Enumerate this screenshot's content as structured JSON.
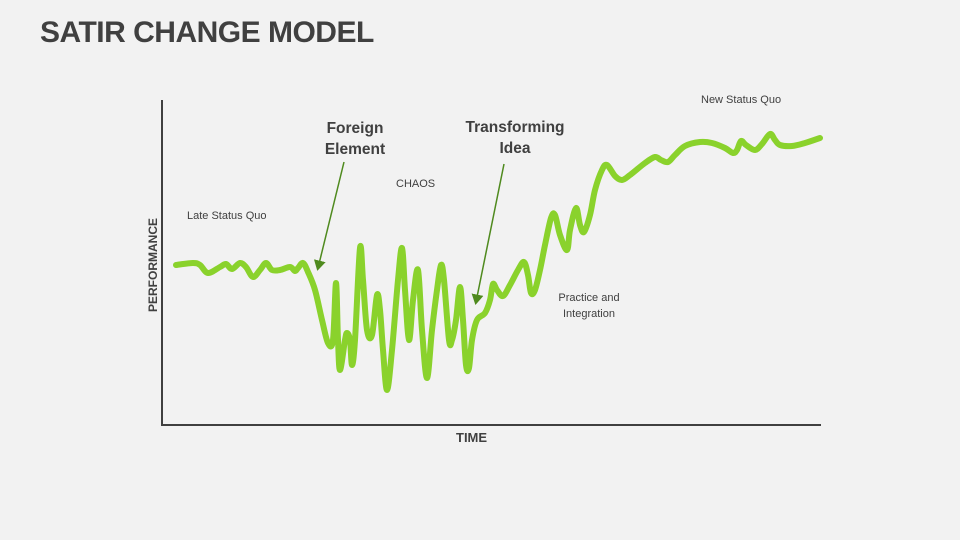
{
  "title": "SATIR CHANGE MODEL",
  "axes": {
    "x_label": "TIME",
    "y_label": "PERFORMANCE"
  },
  "annotations": {
    "late_status_quo": "Late Status Quo",
    "foreign_element": [
      "Foreign",
      "Element"
    ],
    "chaos": "CHAOS",
    "transforming_idea": [
      "Transforming",
      "Idea"
    ],
    "practice_integration": [
      "Practice and",
      "Integration"
    ],
    "new_status_quo": "New Status Quo"
  },
  "colors": {
    "curve": "#8ad22c",
    "arrow": "#4f8a1e",
    "axis": "#404040",
    "background": "#f2f2f2"
  }
}
